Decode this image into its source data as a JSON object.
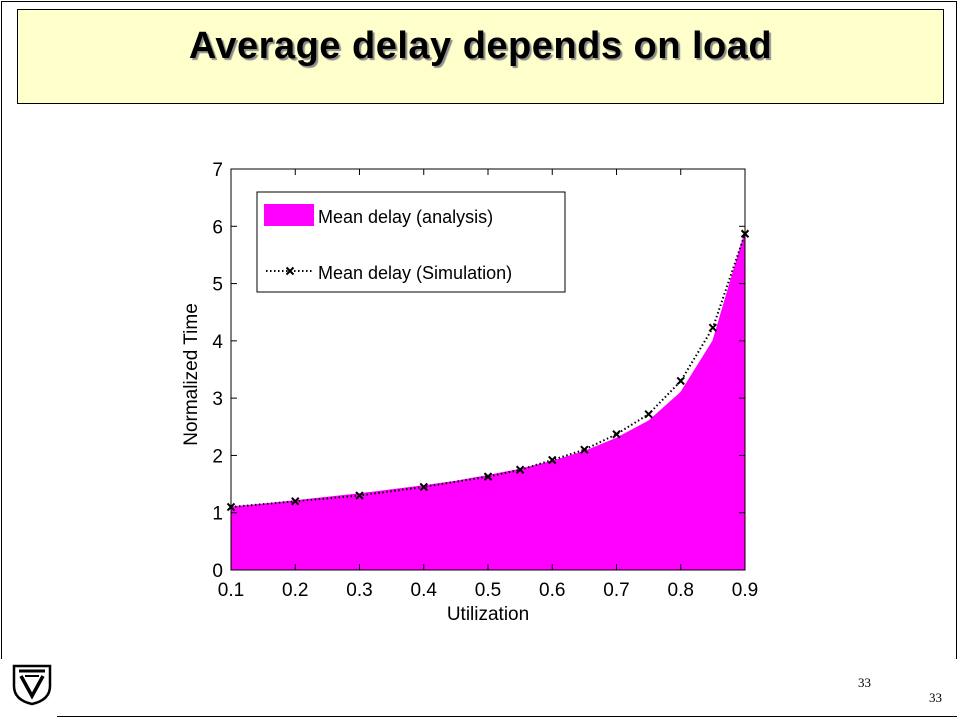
{
  "slide": {
    "title": "Average delay depends on load",
    "page_number": "33",
    "page_number_footer": "33"
  },
  "logo": {
    "icon": "technion-logo-icon"
  },
  "chart_data": {
    "type": "area",
    "xlabel": "Utilization",
    "ylabel": "Normalized Time",
    "xlim": [
      0.1,
      0.9
    ],
    "ylim": [
      0,
      7
    ],
    "x_ticks": [
      "0.1",
      "0.2",
      "0.3",
      "0.4",
      "0.5",
      "0.6",
      "0.7",
      "0.8",
      "0.9"
    ],
    "y_ticks": [
      "0",
      "1",
      "2",
      "3",
      "4",
      "5",
      "6",
      "7"
    ],
    "legend_position": "top-left",
    "grid": false,
    "colors": {
      "analysis": "#ff00ff",
      "simulation": "#000000"
    },
    "series": [
      {
        "name": "Mean delay (analysis)",
        "style": "filled-area",
        "x": [
          0.1,
          0.15,
          0.2,
          0.25,
          0.3,
          0.35,
          0.4,
          0.45,
          0.5,
          0.55,
          0.6,
          0.65,
          0.7,
          0.75,
          0.8,
          0.85,
          0.9
        ],
        "y": [
          1.1,
          1.15,
          1.21,
          1.27,
          1.33,
          1.4,
          1.47,
          1.55,
          1.65,
          1.76,
          1.9,
          2.07,
          2.3,
          2.6,
          3.1,
          4.0,
          5.9
        ]
      },
      {
        "name": "Mean delay (Simulation)",
        "style": "dotted-x",
        "x": [
          0.1,
          0.2,
          0.3,
          0.4,
          0.5,
          0.55,
          0.6,
          0.65,
          0.7,
          0.75,
          0.8,
          0.85,
          0.9
        ],
        "y": [
          1.1,
          1.2,
          1.3,
          1.45,
          1.63,
          1.75,
          1.92,
          2.1,
          2.37,
          2.72,
          3.3,
          4.23,
          5.87
        ]
      }
    ]
  }
}
